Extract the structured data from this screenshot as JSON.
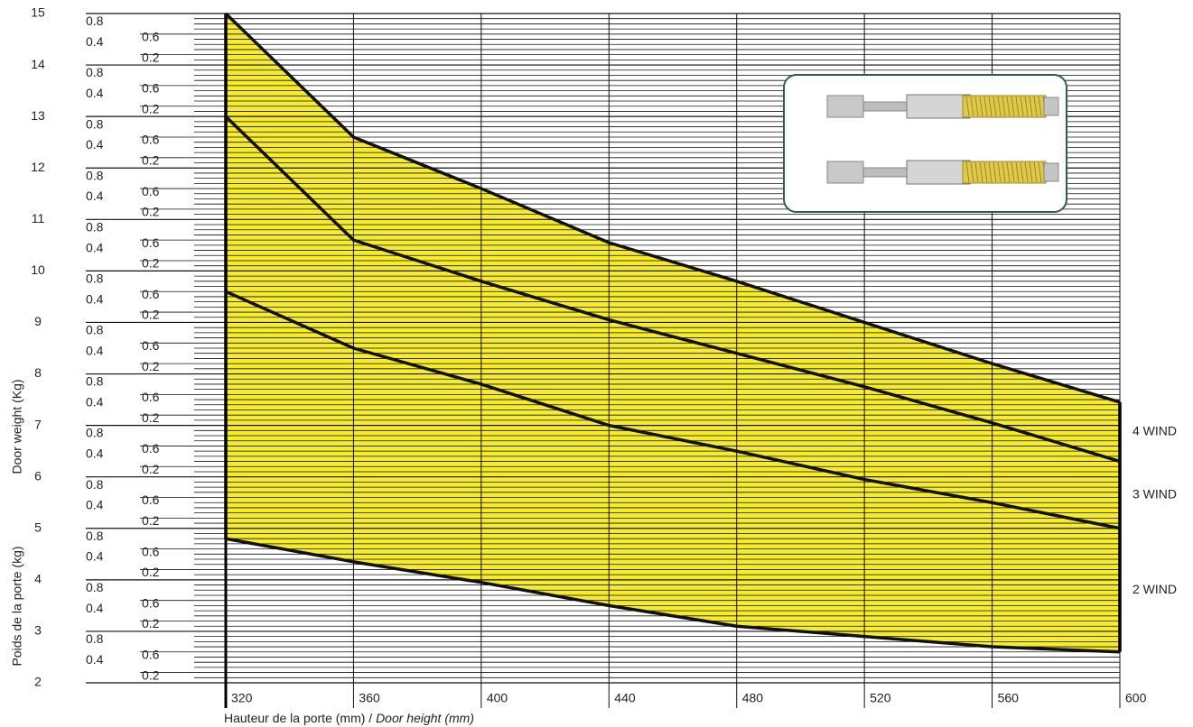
{
  "chart_data": {
    "type": "line",
    "ylabels": [
      "Door weight (Kg)",
      "Poids de la porte (kg)"
    ],
    "xlabel": [
      "Hauteur de la porte (mm) /",
      "Door height (mm)"
    ],
    "x": [
      320,
      360,
      400,
      440,
      480,
      520,
      560,
      600
    ],
    "series": [
      {
        "name": "4 WIND",
        "color": "#111111",
        "values": [
          15,
          12.6,
          11.6,
          10.55,
          9.8,
          9.0,
          8.2,
          7.45
        ]
      },
      {
        "name": "3 WIND",
        "color": "#111111",
        "values": [
          13,
          10.6,
          9.8,
          9.05,
          8.4,
          7.75,
          7.05,
          6.3
        ]
      },
      {
        "name": "2 WIND",
        "color": "#111111",
        "values": [
          9.6,
          8.5,
          7.8,
          7.0,
          6.5,
          5.95,
          5.5,
          5.0
        ]
      },
      {
        "color": "#111111",
        "values": [
          4.8,
          4.35,
          3.95,
          3.5,
          3.1,
          2.9,
          2.7,
          2.6
        ]
      }
    ],
    "fill_color": "#f6ec2c",
    "xlim": [
      320,
      600
    ],
    "xticks": [
      320,
      360,
      400,
      440,
      480,
      520,
      560,
      600
    ],
    "ylim": [
      2,
      15
    ],
    "yticks": [
      2,
      3,
      4,
      5,
      6,
      7,
      8,
      9,
      10,
      11,
      12,
      13,
      14,
      15
    ],
    "minor_yticks": [
      {
        "value": 14.8,
        "label": "0.8"
      },
      {
        "value": 14.6,
        "label": "0.6"
      },
      {
        "value": 14.4,
        "label": "0.4"
      },
      {
        "value": 14.2,
        "label": "0.2"
      },
      {
        "value": 13.8,
        "label": "0.8"
      },
      {
        "value": 13.6,
        "label": "0.6"
      },
      {
        "value": 13.4,
        "label": "0.4"
      },
      {
        "value": 13.2,
        "label": "0.2"
      },
      {
        "value": 12.8,
        "label": "0.8"
      },
      {
        "value": 12.6,
        "label": "0.6"
      },
      {
        "value": 12.4,
        "label": "0.4"
      },
      {
        "value": 12.2,
        "label": "0.2"
      },
      {
        "value": 11.8,
        "label": "0.8"
      },
      {
        "value": 11.6,
        "label": "0.6"
      },
      {
        "value": 11.4,
        "label": "0.4"
      },
      {
        "value": 11.2,
        "label": "0.2"
      },
      {
        "value": 10.8,
        "label": "0.8"
      },
      {
        "value": 10.6,
        "label": "0.6"
      },
      {
        "value": 10.4,
        "label": "0.4"
      },
      {
        "value": 10.2,
        "label": "0.2"
      },
      {
        "value": 9.8,
        "label": "0.8"
      },
      {
        "value": 9.6,
        "label": "0.6"
      },
      {
        "value": 9.4,
        "label": "0.4"
      },
      {
        "value": 9.2,
        "label": "0.2"
      },
      {
        "value": 8.8,
        "label": "0.8"
      },
      {
        "value": 8.6,
        "label": "0.6"
      },
      {
        "value": 8.4,
        "label": "0.4"
      },
      {
        "value": 8.2,
        "label": "0.2"
      },
      {
        "value": 7.8,
        "label": "0.8"
      },
      {
        "value": 7.6,
        "label": "0.6"
      },
      {
        "value": 7.4,
        "label": "0.4"
      },
      {
        "value": 7.2,
        "label": "0.2"
      },
      {
        "value": 6.8,
        "label": "0.8"
      },
      {
        "value": 6.6,
        "label": "0.6"
      },
      {
        "value": 6.4,
        "label": "0.4"
      },
      {
        "value": 6.2,
        "label": "0.2"
      },
      {
        "value": 5.8,
        "label": "0.8"
      },
      {
        "value": 5.6,
        "label": "0.6"
      },
      {
        "value": 5.4,
        "label": "0.4"
      },
      {
        "value": 5.2,
        "label": "0.2"
      },
      {
        "value": 4.8,
        "label": "0.8"
      },
      {
        "value": 4.6,
        "label": "0.6"
      },
      {
        "value": 4.4,
        "label": "0.4"
      },
      {
        "value": 4.2,
        "label": "0.2"
      },
      {
        "value": 3.8,
        "label": "0.8"
      },
      {
        "value": 3.6,
        "label": "0.6"
      },
      {
        "value": 3.4,
        "label": "0.4"
      },
      {
        "value": 3.2,
        "label": "0.2"
      },
      {
        "value": 2.8,
        "label": "0.8"
      },
      {
        "value": 2.6,
        "label": "0.6"
      },
      {
        "value": 2.4,
        "label": "0.4"
      },
      {
        "value": 2.2,
        "label": "0.2"
      }
    ],
    "ygrid_step": 0.1,
    "grid": true
  }
}
